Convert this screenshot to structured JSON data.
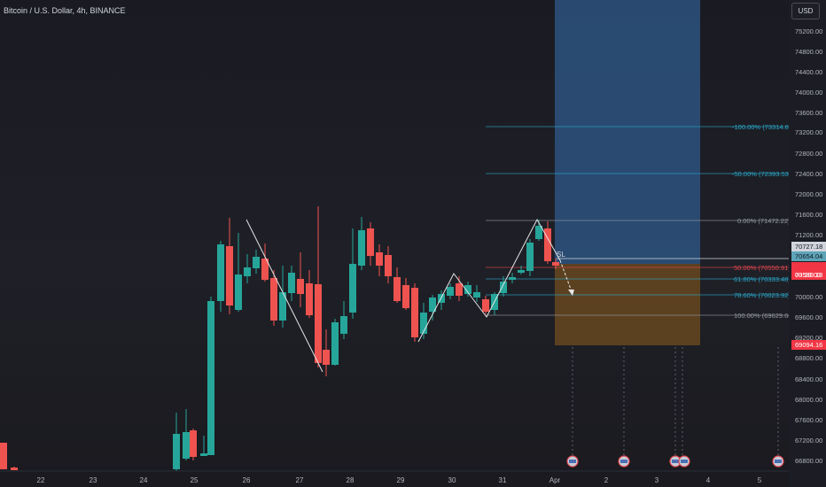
{
  "header": {
    "title": "Bitcoin / U.S. Dollar, 4h, BINANCE",
    "currency_button": "USD"
  },
  "price_axis": {
    "ticks": [
      "75200.00",
      "74800.00",
      "74400.00",
      "74000.00",
      "73600.00",
      "73200.00",
      "72800.00",
      "72400.00",
      "72000.00",
      "71600.00",
      "71200.00",
      "70000.00",
      "69600.00",
      "69200.00",
      "68800.00",
      "68400.00",
      "68000.00",
      "67600.00",
      "67200.00",
      "66800.00"
    ]
  },
  "price_tags": {
    "t1": "70727.18",
    "t2": "70654.04",
    "current": "70580.13",
    "countdown": "03:20:03",
    "low": "69094.16"
  },
  "time_axis": [
    "22",
    "23",
    "24",
    "25",
    "26",
    "27",
    "28",
    "29",
    "30",
    "31",
    "Apr",
    "2",
    "3",
    "4",
    "5"
  ],
  "fib_levels": [
    {
      "label": "-100.00% (73314.84)",
      "color": "#2aa6c9"
    },
    {
      "label": "-50.00% (72393.53)",
      "color": "#2aa6c9"
    },
    {
      "label": "0.00% (71472.22)",
      "color": "#9598a1"
    },
    {
      "label": "50.00% (70550.91)",
      "color": "#e0454f"
    },
    {
      "label": "61.80% (70333.48)",
      "color": "#2aa6c9"
    },
    {
      "label": "78.60% (70023.92)",
      "color": "#2aa6c9"
    },
    {
      "label": "100.00% (69629.60)",
      "color": "#9598a1"
    }
  ],
  "annotations": {
    "stop_label": "SL"
  },
  "colors": {
    "up": "#26a69a",
    "down": "#ef5350",
    "target_zone": "#2f5a8c",
    "stop_zone": "#6b4a1f"
  }
}
